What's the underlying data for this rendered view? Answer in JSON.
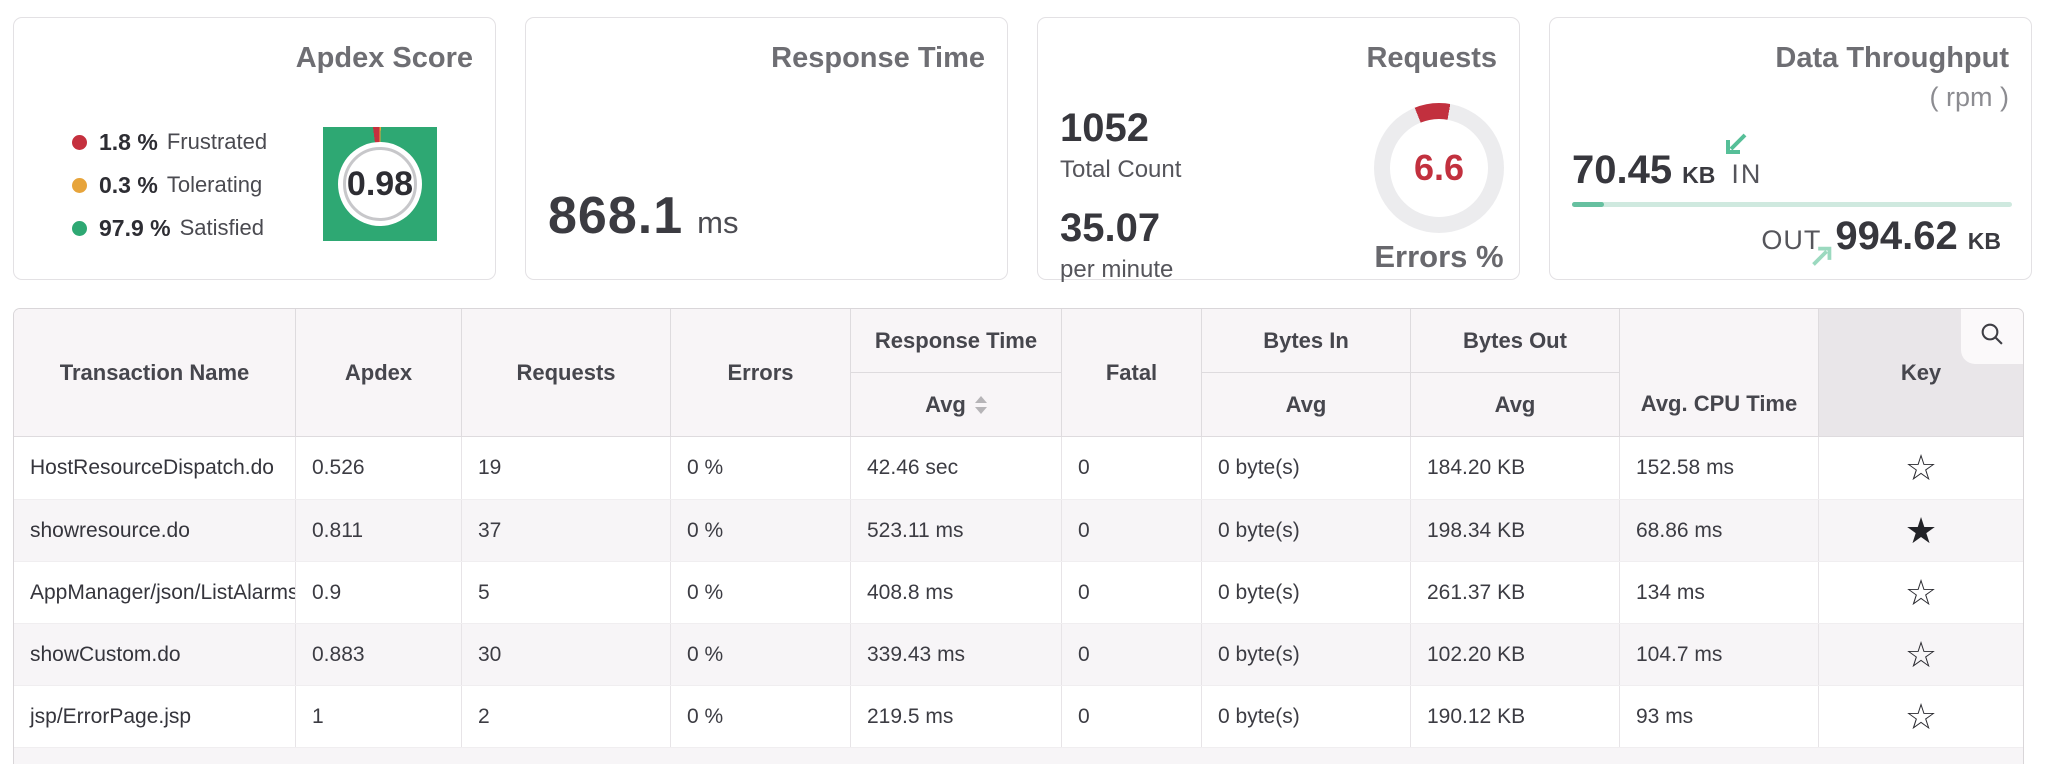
{
  "cards": {
    "apdex": {
      "title": "Apdex Score",
      "score": "0.98",
      "legend": [
        {
          "value": "1.8 %",
          "label": "Frustrated"
        },
        {
          "value": "0.3 %",
          "label": "Tolerating"
        },
        {
          "value": "97.9 %",
          "label": "Satisfied"
        }
      ]
    },
    "response_time": {
      "title": "Response Time",
      "value": "868.1",
      "unit": "ms"
    },
    "requests": {
      "title": "Requests",
      "total_count": "1052",
      "total_count_label": "Total Count",
      "per_minute": "35.07",
      "per_minute_label": "per minute",
      "errors_value": "6.6",
      "errors_label": "Errors %"
    },
    "throughput": {
      "title": "Data Throughput",
      "subtitle": "( rpm )",
      "in_value": "70.45",
      "in_unit": "KB",
      "in_label": "IN",
      "out_label": "OUT",
      "out_value": "994.62",
      "out_unit": "KB"
    }
  },
  "colors": {
    "frustrated": "#c5303e",
    "tolerating": "#e7a43b",
    "satisfied": "#2ea873",
    "error_red": "#c2303e",
    "donut_track": "#ececee",
    "bar_light": "#cfe9df",
    "bar_dark": "#66c0a0"
  },
  "table": {
    "headers": {
      "transaction": "Transaction Name",
      "apdex": "Apdex",
      "requests": "Requests",
      "errors": "Errors",
      "response_time": "Response Time",
      "response_time_sub": "Avg",
      "fatal": "Fatal",
      "bytes_in": "Bytes In",
      "bytes_in_sub": "Avg",
      "bytes_out": "Bytes Out",
      "bytes_out_sub": "Avg",
      "cpu_sub": "Avg. CPU Time",
      "key": "Key"
    },
    "rows": [
      {
        "name": "HostResourceDispatch.do",
        "apdex": "0.526",
        "requests": "19",
        "errors": "0 %",
        "response_avg": "42.46 sec",
        "fatal": "0",
        "bytes_in": "0 byte(s)",
        "bytes_out": "184.20 KB",
        "cpu": "152.58 ms",
        "starred": false
      },
      {
        "name": "showresource.do",
        "apdex": "0.811",
        "requests": "37",
        "errors": "0 %",
        "response_avg": "523.11 ms",
        "fatal": "0",
        "bytes_in": "0 byte(s)",
        "bytes_out": "198.34 KB",
        "cpu": "68.86 ms",
        "starred": true
      },
      {
        "name": "AppManager/json/ListAlarms",
        "apdex": "0.9",
        "requests": "5",
        "errors": "0 %",
        "response_avg": "408.8 ms",
        "fatal": "0",
        "bytes_in": "0 byte(s)",
        "bytes_out": "261.37 KB",
        "cpu": "134 ms",
        "starred": false
      },
      {
        "name": "showCustom.do",
        "apdex": "0.883",
        "requests": "30",
        "errors": "0 %",
        "response_avg": "339.43 ms",
        "fatal": "0",
        "bytes_in": "0 byte(s)",
        "bytes_out": "102.20 KB",
        "cpu": "104.7 ms",
        "starred": false
      },
      {
        "name": "jsp/ErrorPage.jsp",
        "apdex": "1",
        "requests": "2",
        "errors": "0 %",
        "response_avg": "219.5 ms",
        "fatal": "0",
        "bytes_in": "0 byte(s)",
        "bytes_out": "190.12 KB",
        "cpu": "93 ms",
        "starred": false
      }
    ]
  }
}
